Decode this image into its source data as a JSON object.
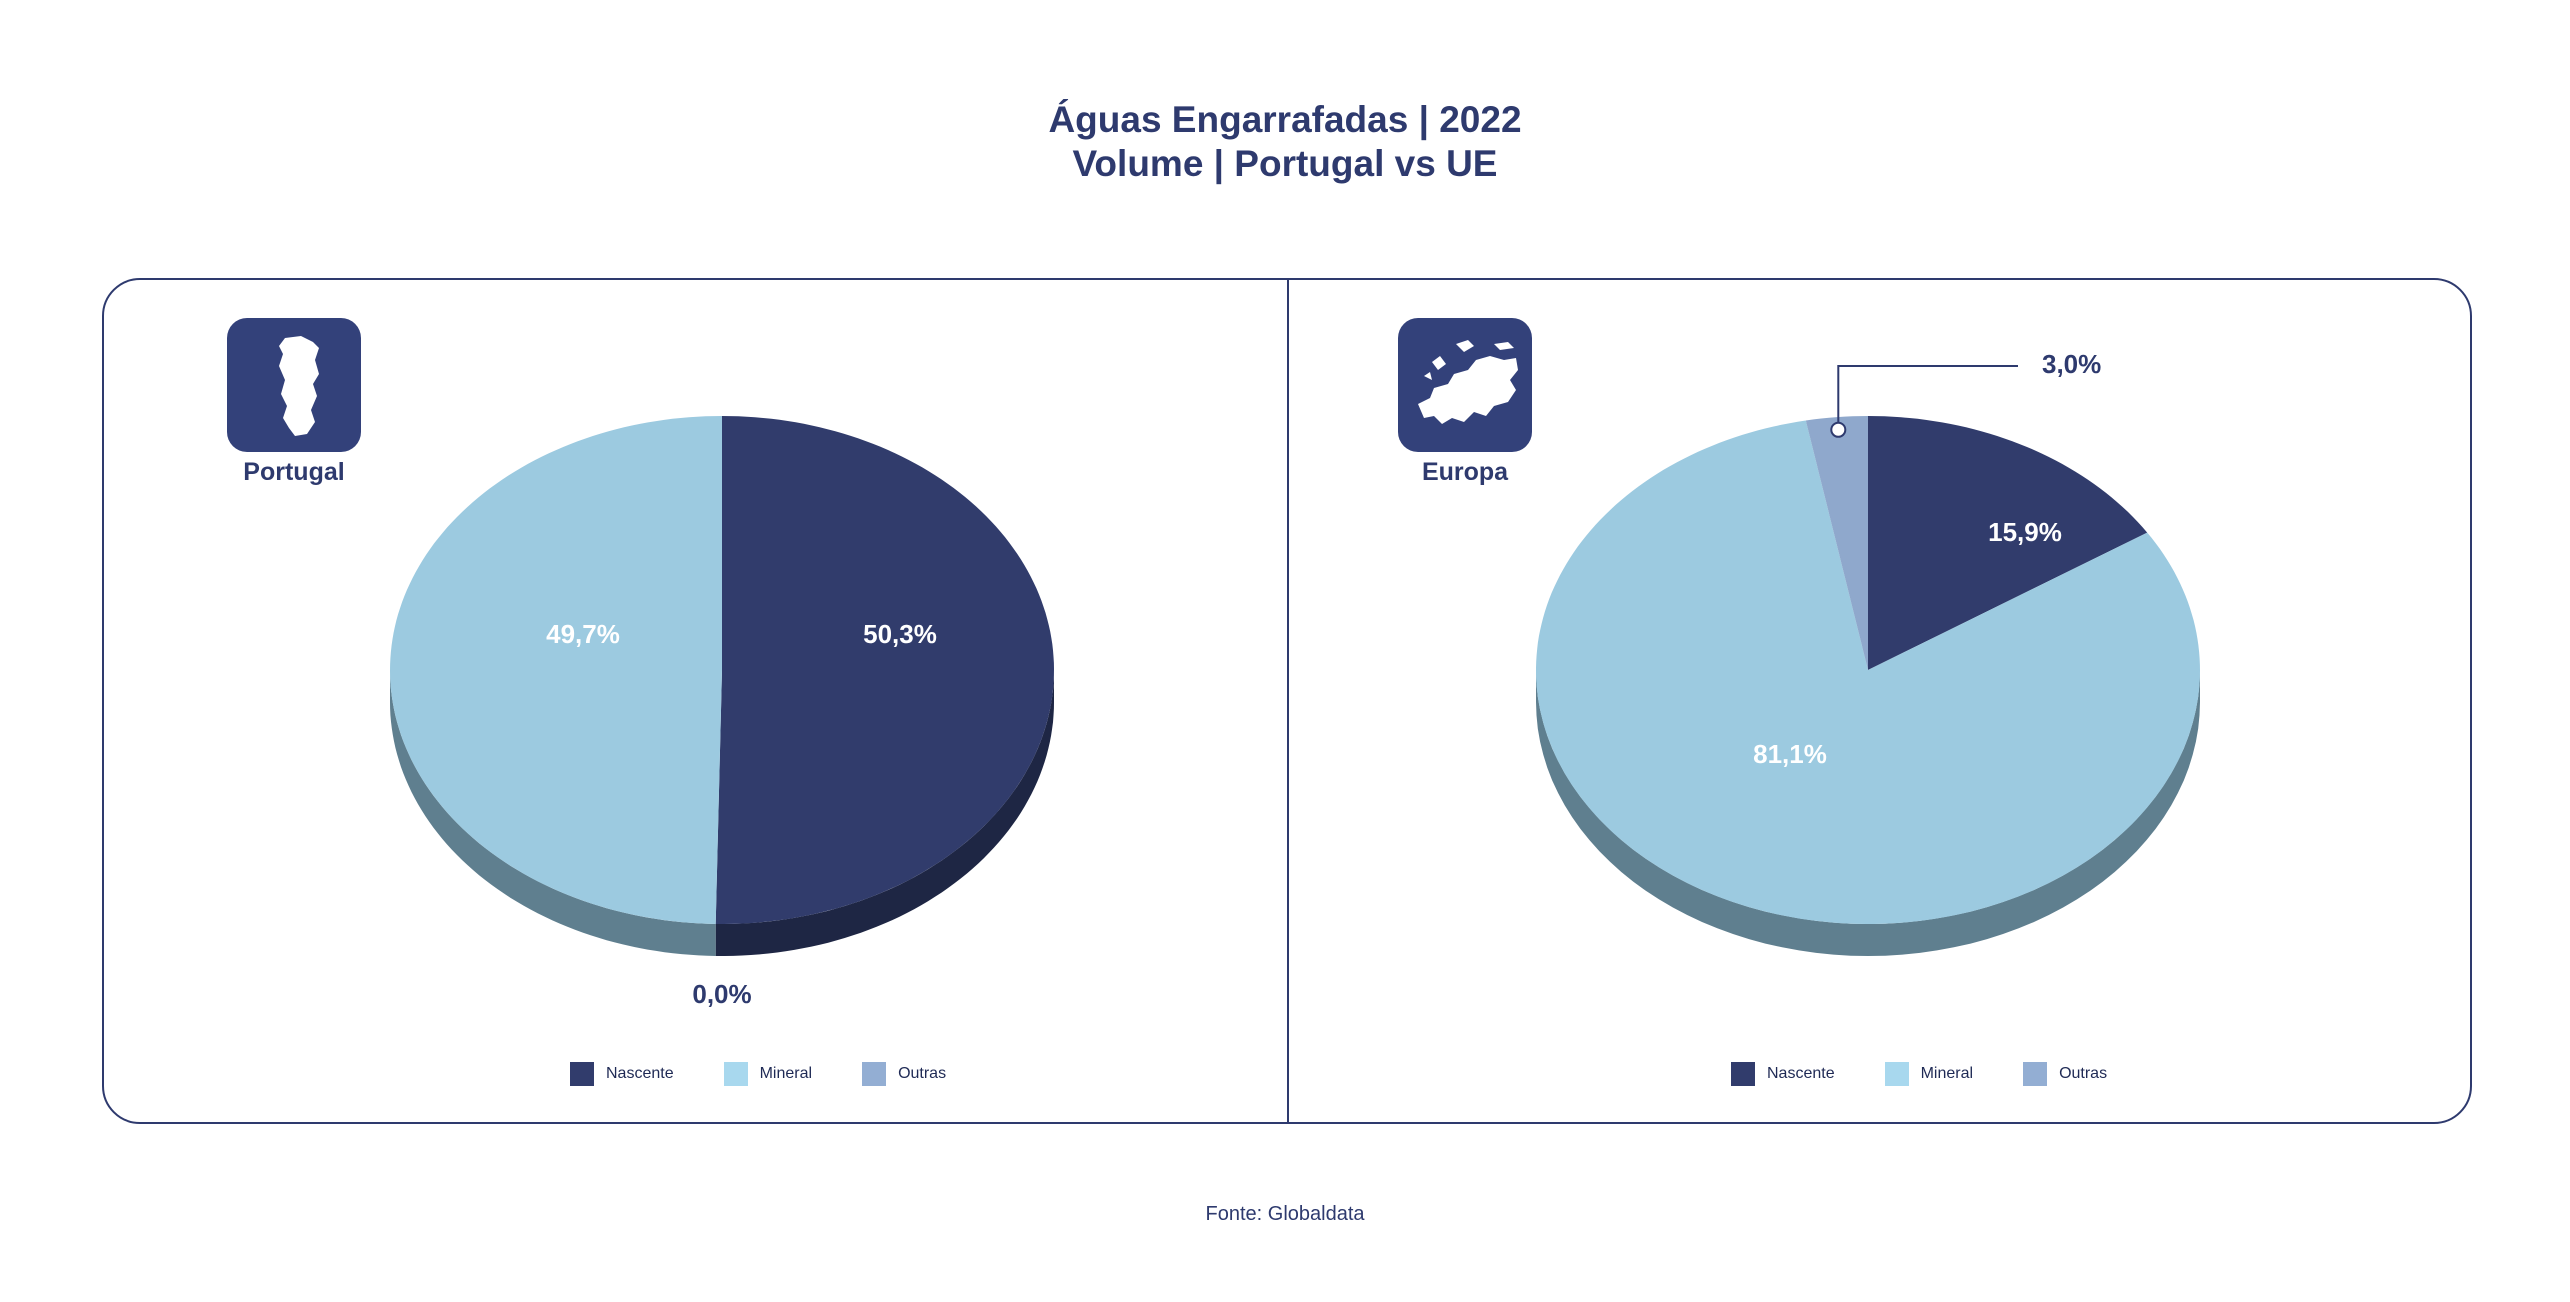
{
  "title_line1": "Águas Engarrafadas | 2022",
  "title_line2": "Volume | Portugal vs UE",
  "source": "Fonte: Globaldata",
  "colors": {
    "nascente": "#313c6c",
    "nascente_side": "#1e2644",
    "mineral": "#9ccae0",
    "mineral_side": "#5f7f8f",
    "outras": "#8fa8cc",
    "outras_side": "#5b6e86",
    "frame": "#2e3a6e",
    "text": "#2e3a6e"
  },
  "icons": {
    "portugal": "portugal-map-icon",
    "europa": "europe-map-icon"
  },
  "chart_data": [
    {
      "type": "pie",
      "region": "Portugal",
      "categories": [
        "Nascente",
        "Mineral",
        "Outras"
      ],
      "values": [
        50.3,
        49.7,
        0.0
      ],
      "labels": [
        "50,3%",
        "49,7%",
        "0,0%"
      ],
      "legend": [
        "Nascente",
        "Mineral",
        "Outras"
      ],
      "legend_position": "bottom"
    },
    {
      "type": "pie",
      "region": "Europa",
      "categories": [
        "Nascente",
        "Mineral",
        "Outras"
      ],
      "values": [
        15.9,
        81.1,
        3.0
      ],
      "labels": [
        "15,9%",
        "81,1%",
        "3,0%"
      ],
      "legend": [
        "Nascente",
        "Mineral",
        "Outras"
      ],
      "legend_position": "bottom"
    }
  ]
}
